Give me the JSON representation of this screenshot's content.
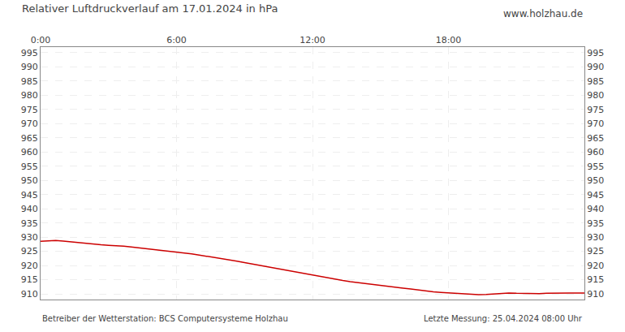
{
  "chart_data": {
    "type": "line",
    "title": "Relativer Luftdruckverlauf am 17.01.2024 in hPa",
    "annotations": [
      "www.holzhau.de",
      "Betreiber der Wetterstation: BCS Computersysteme Holzhau",
      "Letzte Messung: 25.04.2024 08:00 Uhr"
    ],
    "x": [
      0,
      20,
      40,
      60,
      80,
      100,
      120,
      140,
      160,
      180,
      200,
      220,
      240,
      260,
      280,
      300,
      320,
      340,
      360,
      380,
      400,
      420,
      440,
      460,
      480,
      500,
      520,
      540,
      560,
      580,
      600,
      620,
      640,
      660,
      680,
      700,
      720,
      740,
      760,
      780,
      800,
      820,
      840,
      860,
      880,
      900,
      920,
      940,
      960,
      980,
      1000,
      1020,
      1040,
      1060,
      1080,
      1100,
      1120,
      1140,
      1160,
      1180,
      1200,
      1220,
      1240,
      1260,
      1280,
      1300,
      1320,
      1340,
      1360,
      1380,
      1400,
      1420,
      1440
    ],
    "values": [
      928.5,
      928.7,
      928.8,
      928.6,
      928.3,
      928.0,
      927.8,
      927.6,
      927.3,
      927.1,
      927.0,
      926.8,
      926.5,
      926.2,
      926.0,
      925.8,
      925.5,
      925.2,
      924.9,
      924.5,
      924.1,
      923.7,
      923.3,
      922.9,
      922.5,
      922.0,
      921.5,
      921.0,
      920.5,
      920.0,
      919.5,
      919.0,
      918.5,
      918.0,
      917.5,
      917.0,
      916.5,
      916.0,
      915.5,
      915.0,
      914.7,
      914.3,
      914.0,
      913.7,
      913.3,
      913.0,
      912.7,
      912.3,
      912.0,
      911.7,
      911.3,
      911.0,
      910.7,
      910.5,
      910.3,
      910.2,
      910.0,
      909.8,
      909.7,
      909.8,
      910.0,
      910.2,
      910.3,
      910.2,
      910.1,
      910.0,
      910.1,
      910.2,
      910.3,
      910.3,
      910.3,
      910.3,
      910.3
    ],
    "color": "#cc0000",
    "xlim": [
      0,
      1440
    ],
    "xticks": [
      {
        "value": 0,
        "label": "0:00"
      },
      {
        "value": 360,
        "label": "6:00"
      },
      {
        "value": 720,
        "label": "12:00"
      },
      {
        "value": 1080,
        "label": "18:00"
      }
    ],
    "ylim": [
      908,
      997
    ],
    "yticks": [
      910,
      915,
      920,
      925,
      930,
      935,
      940,
      945,
      950,
      955,
      960,
      965,
      970,
      975,
      980,
      985,
      990,
      995
    ],
    "y2lim": [
      908,
      997
    ],
    "y2ticks": [
      910,
      915,
      920,
      925,
      930,
      935,
      940,
      945,
      950,
      955,
      960,
      965,
      970,
      975,
      980,
      985,
      990,
      995
    ],
    "grid": true
  }
}
